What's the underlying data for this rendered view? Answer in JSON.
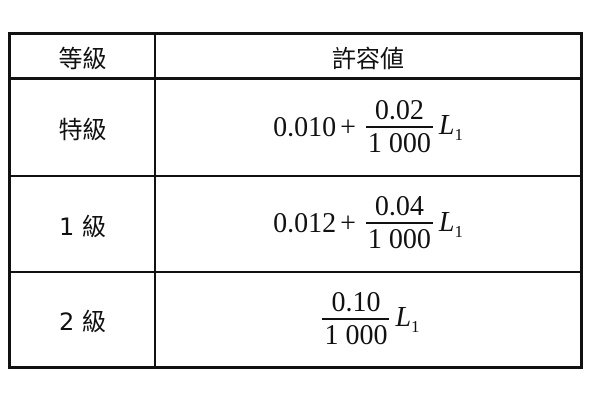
{
  "table": {
    "headers": [
      "等級",
      "許容値"
    ],
    "rows": [
      {
        "grade": "特級",
        "constant": "0.010",
        "operator": "+",
        "numerator": "0.02",
        "denominator": "1 000",
        "variable": "L",
        "subscript": "1"
      },
      {
        "grade": "1 級",
        "constant": "0.012",
        "operator": "+",
        "numerator": "0.04",
        "denominator": "1 000",
        "variable": "L",
        "subscript": "1"
      },
      {
        "grade": "2 級",
        "numerator": "0.10",
        "denominator": "1 000",
        "variable": "L",
        "subscript": "1"
      }
    ]
  }
}
